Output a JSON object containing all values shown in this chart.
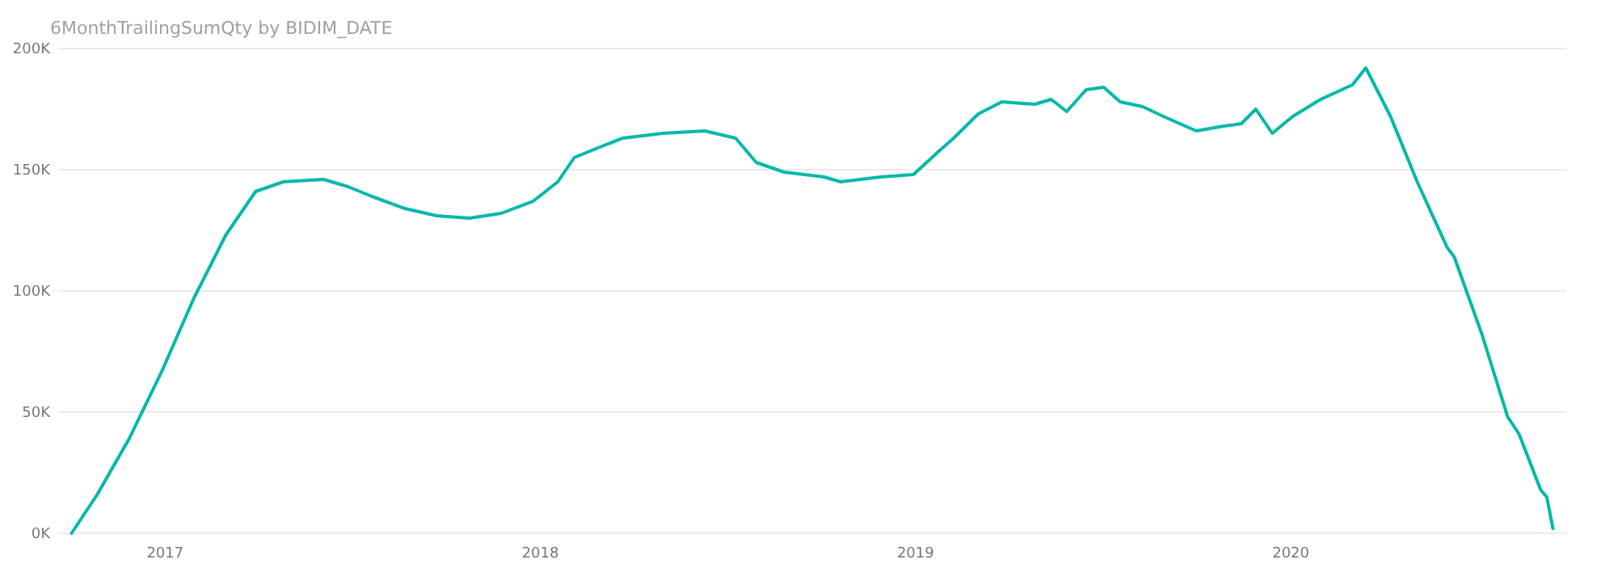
{
  "chart_data": {
    "type": "line",
    "title": "6MonthTrailingSumQty by BIDIM_DATE",
    "x": [
      "2016-10-02",
      "2016-10-27",
      "2016-11-27",
      "2016-12-29",
      "2017-01-29",
      "2017-03-01",
      "2017-03-30",
      "2017-04-26",
      "2017-06-04",
      "2017-06-28",
      "2017-07-21",
      "2017-08-22",
      "2017-09-22",
      "2017-10-24",
      "2017-11-24",
      "2017-12-25",
      "2018-01-18",
      "2018-02-03",
      "2018-02-26",
      "2018-03-22",
      "2018-04-30",
      "2018-06-10",
      "2018-07-10",
      "2018-07-30",
      "2018-08-26",
      "2018-10-04",
      "2018-10-20",
      "2018-11-28",
      "2018-12-30",
      "2019-01-22",
      "2019-02-07",
      "2019-03-03",
      "2019-03-26",
      "2019-04-27",
      "2019-05-13",
      "2019-05-28",
      "2019-06-16",
      "2019-07-03",
      "2019-07-19",
      "2019-08-10",
      "2019-08-30",
      "2019-10-01",
      "2019-10-28",
      "2019-11-14",
      "2019-11-28",
      "2019-12-14",
      "2020-01-03",
      "2020-01-30",
      "2020-03-01",
      "2020-03-14",
      "2020-04-07",
      "2020-05-03",
      "2020-06-01",
      "2020-06-08",
      "2020-07-05",
      "2020-07-30",
      "2020-08-10",
      "2020-08-31",
      "2020-09-06",
      "2020-09-12"
    ],
    "series": [
      {
        "color": "#01b8aa",
        "values": [
          0,
          16000,
          39000,
          67000,
          97000,
          123000,
          141000,
          145000,
          146000,
          143000,
          139000,
          134000,
          131000,
          130000,
          132000,
          137000,
          145000,
          155000,
          159000,
          163000,
          165000,
          166000,
          163000,
          153000,
          149000,
          147000,
          145000,
          147000,
          148000,
          157000,
          163000,
          173000,
          178000,
          177000,
          179000,
          174000,
          183000,
          184000,
          178000,
          176000,
          172000,
          166000,
          168000,
          169000,
          175000,
          165000,
          172000,
          179000,
          185000,
          192000,
          172000,
          145000,
          118000,
          114000,
          82000,
          48000,
          41000,
          18000,
          15000,
          2000
        ]
      }
    ],
    "xlim": [
      "2016-09-19",
      "2020-09-25"
    ],
    "xticks": [
      "2017",
      "2018",
      "2019",
      "2020"
    ],
    "ylim": [
      0,
      200000
    ],
    "yticks": [
      {
        "value": 0,
        "label": "0K"
      },
      {
        "value": 50000,
        "label": "50K"
      },
      {
        "value": 100000,
        "label": "100K"
      },
      {
        "value": 150000,
        "label": "150K"
      },
      {
        "value": 200000,
        "label": "200K"
      }
    ],
    "grid": "y",
    "marker": "none",
    "line_style": "solid"
  }
}
